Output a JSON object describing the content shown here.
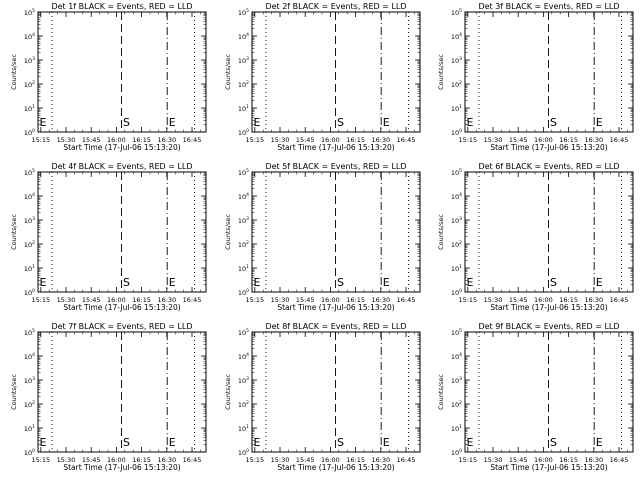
{
  "chart_data": {
    "type": "line",
    "ylabel": "Counts/sec",
    "xlabel": "Start Time (17-Jul-06 15:13:20)",
    "x_unit": "minutes since 15:13:20",
    "xlim": [
      0,
      100
    ],
    "ylim_exponents": [
      0,
      5
    ],
    "y_scale": "log",
    "x_ticks": [
      {
        "label": "15:15",
        "value": 1.67
      },
      {
        "label": "15:30",
        "value": 16.67
      },
      {
        "label": "15:45",
        "value": 31.67
      },
      {
        "label": "16:00",
        "value": 46.67
      },
      {
        "label": "16:15",
        "value": 61.67
      },
      {
        "label": "16:30",
        "value": 76.67
      },
      {
        "label": "16:45",
        "value": 91.67
      }
    ],
    "y_ticks": [
      {
        "mantissa": "10",
        "exp": "0",
        "value": 0
      },
      {
        "mantissa": "10",
        "exp": "1",
        "value": 1
      },
      {
        "mantissa": "10",
        "exp": "2",
        "value": 2
      },
      {
        "mantissa": "10",
        "exp": "3",
        "value": 3
      },
      {
        "mantissa": "10",
        "exp": "4",
        "value": 4
      },
      {
        "mantissa": "10",
        "exp": "5",
        "value": 5
      }
    ],
    "markers": [
      {
        "style": "dotted",
        "value": 8.3,
        "label": ""
      },
      {
        "style": "dashed",
        "value": 49.7,
        "label": "S"
      },
      {
        "style": "dashdot",
        "value": 76.9,
        "label": "E"
      },
      {
        "style": "dotted",
        "value": 93.2,
        "label": ""
      }
    ],
    "left_edge_label": "E",
    "panels": [
      {
        "title": "Det 1f BLACK = Events, RED = LLD",
        "xlabel": "Start Time (17-Jul-06 15:13:20)"
      },
      {
        "title": "Det 2f BLACK = Events, RED = LLD",
        "xlabel": "Start Time (17-Jul-06 15:13:20)"
      },
      {
        "title": "Det 3f BLACK = Events, RED = LLD",
        "xlabel": "Start Time (17-Jul-06 15:13:20)"
      },
      {
        "title": "Det 4f BLACK = Events, RED = LLD",
        "xlabel": "Start Time (17-Jul-06 15:13:20)"
      },
      {
        "title": "Det 5f BLACK = Events, RED = LLD",
        "xlabel": "Start Time (17-Jul-06 15:13:20)"
      },
      {
        "title": "Det 6f BLACK = Events, RED = LLD",
        "xlabel": "Start Time (17-Jul-06 15:13:20)"
      },
      {
        "title": "Det 7f BLACK = Events, RED = LLD",
        "xlabel": "Start Time (17-Jul-06 15:13:20)"
      },
      {
        "title": "Det 8f BLACK = Events, RED = LLD",
        "xlabel": "Start Time (17-Jul-06 15:13:20)"
      },
      {
        "title": "Det 9f BLACK = Events, RED = LLD",
        "xlabel": "Start Time (17-Jul-06 15:13:20)"
      }
    ],
    "series": []
  }
}
